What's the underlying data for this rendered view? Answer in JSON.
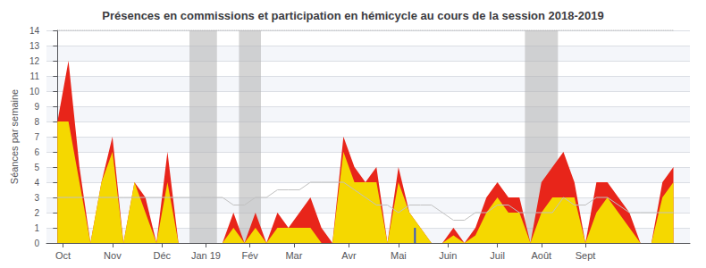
{
  "chart_data": {
    "type": "area",
    "title": "Présences en commissions et participation en hémicycle au cours de la session 2018-2019",
    "ylabel": "Séances par semaine",
    "x": [
      0,
      1,
      2,
      3,
      4,
      5,
      6,
      7,
      8,
      9,
      10,
      11,
      12,
      13,
      14,
      15,
      16,
      17,
      18,
      19,
      20,
      21,
      22,
      23,
      24,
      25,
      26,
      27,
      28,
      29,
      30,
      31,
      32,
      33,
      34,
      35,
      36,
      37,
      38,
      39,
      40,
      41,
      42,
      43,
      44,
      45,
      46,
      47,
      48,
      49,
      50,
      51,
      52,
      53,
      54,
      55,
      56
    ],
    "xlim": [
      -1,
      57.5
    ],
    "xticks": [
      {
        "value": 0.5,
        "label": "Oct"
      },
      {
        "value": 5.0,
        "label": "Nov"
      },
      {
        "value": 9.5,
        "label": "Déc"
      },
      {
        "value": 13.5,
        "label": "Jan 19"
      },
      {
        "value": 17.5,
        "label": "Fév"
      },
      {
        "value": 21.5,
        "label": "Mar"
      },
      {
        "value": 26.5,
        "label": "Avr"
      },
      {
        "value": 31.0,
        "label": "Mai"
      },
      {
        "value": 35.5,
        "label": "Juin"
      },
      {
        "value": 40.0,
        "label": "Juil"
      },
      {
        "value": 44.0,
        "label": "Août"
      },
      {
        "value": 48.0,
        "label": "Sept"
      }
    ],
    "ylim": [
      0,
      14
    ],
    "yticks": [
      0,
      1,
      2,
      3,
      4,
      5,
      6,
      7,
      8,
      9,
      10,
      11,
      12,
      13,
      14
    ],
    "grid": true,
    "series": [
      {
        "type": "area",
        "color": "#e8251a",
        "values": [
          8,
          12,
          5,
          0,
          4,
          7,
          0,
          4,
          3,
          0,
          6,
          0,
          0,
          0,
          0,
          0,
          2,
          0,
          2,
          0,
          2,
          1,
          2,
          3,
          1,
          0,
          7,
          5,
          4,
          5,
          0,
          5,
          2,
          1,
          0,
          0,
          1,
          0,
          1,
          3,
          4,
          3,
          3,
          0,
          4,
          5,
          6,
          4,
          0,
          4,
          4,
          3,
          2,
          0,
          0,
          4,
          5
        ]
      },
      {
        "type": "area",
        "color": "#f5d800",
        "values": [
          8,
          8,
          4,
          0,
          4,
          6,
          0,
          4,
          2,
          0,
          4,
          0,
          0,
          0,
          0,
          0,
          1,
          0,
          1,
          0,
          1,
          1,
          1,
          1,
          0,
          0,
          6,
          4,
          4,
          4,
          0,
          4,
          2,
          1,
          0,
          0,
          0.5,
          0,
          0.5,
          2,
          3,
          2,
          2,
          0,
          2,
          3,
          3,
          3,
          0,
          2,
          3,
          2,
          1,
          0,
          0,
          3,
          4
        ]
      },
      {
        "type": "line",
        "color": "#c0c0c0",
        "values": [
          3,
          3,
          3,
          3,
          3,
          3,
          3,
          3,
          3,
          3,
          3,
          3,
          3,
          3,
          3,
          3,
          2.5,
          2.5,
          3,
          3,
          3.5,
          3.5,
          3.5,
          4,
          4,
          4,
          4,
          3.5,
          3,
          2.5,
          2.5,
          2,
          2.5,
          2.5,
          2.5,
          2,
          1.5,
          1.5,
          2,
          2,
          2.5,
          2.5,
          2,
          2,
          2,
          2,
          3,
          2.5,
          2.5,
          3,
          3,
          2.5,
          2,
          2,
          2,
          2,
          2
        ]
      }
    ],
    "bands": {
      "x": [
        [
          12.0,
          14.5
        ],
        [
          16.5,
          18.5
        ],
        [
          42.5,
          45.5
        ]
      ],
      "color": "#b0b0b0"
    },
    "marker_line": {
      "x": 32.5,
      "y": 1.0,
      "color": "#3355cc"
    },
    "reference_line": {
      "y": 14,
      "x": [
        0,
        56
      ],
      "color": "#aaaaaa",
      "line_style": "dotted"
    }
  }
}
